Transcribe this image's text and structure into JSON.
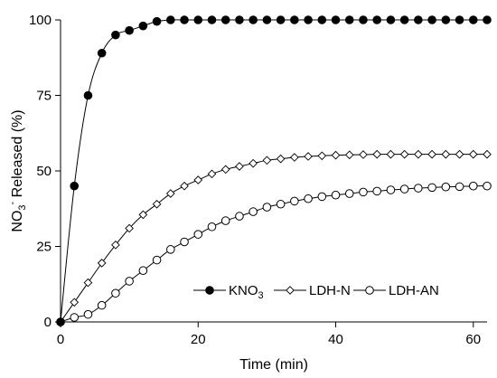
{
  "chart_data": {
    "type": "scatter",
    "xlabel": "Time (min)",
    "ylabel": {
      "pre": "NO",
      "sub": "3",
      "sup": "-",
      "post": " Released (%)"
    },
    "xlim": [
      0,
      62
    ],
    "ylim": [
      0,
      100
    ],
    "xticks": [
      0,
      20,
      40,
      60
    ],
    "yticks": [
      0,
      25,
      50,
      75,
      100
    ],
    "grid": false,
    "legend_position": "lower-right",
    "series": [
      {
        "name": "KNO3",
        "name_parts": {
          "pre": "KNO",
          "sub": "3"
        },
        "marker": "filled-circle",
        "x": [
          0,
          2,
          4,
          6,
          8,
          10,
          12,
          14,
          16,
          18,
          20,
          22,
          24,
          26,
          28,
          30,
          32,
          34,
          36,
          38,
          40,
          42,
          44,
          46,
          48,
          50,
          52,
          54,
          56,
          58,
          60,
          62
        ],
        "y": [
          0,
          45,
          75,
          89,
          95,
          96.5,
          98,
          99.5,
          100,
          100,
          100,
          100,
          100,
          100,
          100,
          100,
          100,
          100,
          100,
          100,
          100,
          100,
          100,
          100,
          100,
          100,
          100,
          100,
          100,
          100,
          100,
          100
        ]
      },
      {
        "name": "LDH-N",
        "name_parts": {
          "pre": "LDH-N",
          "sub": ""
        },
        "marker": "open-diamond",
        "x": [
          0,
          2,
          4,
          6,
          8,
          10,
          12,
          14,
          16,
          18,
          20,
          22,
          24,
          26,
          28,
          30,
          32,
          34,
          36,
          38,
          40,
          42,
          44,
          46,
          48,
          50,
          52,
          54,
          56,
          58,
          60,
          62
        ],
        "y": [
          0,
          6.5,
          13,
          19.5,
          25.5,
          31,
          35.5,
          39,
          42.5,
          45,
          47,
          49,
          50.5,
          51.5,
          52.5,
          53.5,
          54,
          54.5,
          54.8,
          55,
          55.2,
          55.3,
          55.4,
          55.5,
          55.5,
          55.5,
          55.5,
          55.5,
          55.5,
          55.5,
          55.5,
          55.5
        ]
      },
      {
        "name": "LDH-AN",
        "name_parts": {
          "pre": "LDH-AN",
          "sub": ""
        },
        "marker": "open-circle",
        "x": [
          0,
          2,
          4,
          6,
          8,
          10,
          12,
          14,
          16,
          18,
          20,
          22,
          24,
          26,
          28,
          30,
          32,
          34,
          36,
          38,
          40,
          42,
          44,
          46,
          48,
          50,
          52,
          54,
          56,
          58,
          60,
          62
        ],
        "y": [
          0,
          1.5,
          2.5,
          5.5,
          9.5,
          13.5,
          17,
          20.5,
          24,
          26.5,
          29,
          31.5,
          33.5,
          35,
          36.5,
          38,
          39,
          40,
          40.8,
          41.5,
          42,
          42.5,
          43,
          43.3,
          43.7,
          44,
          44.3,
          44.5,
          44.7,
          44.8,
          45,
          45
        ]
      }
    ]
  },
  "colors": {
    "marker_fill": "#000000",
    "marker_open": "#ffffff",
    "line": "#000000",
    "axis": "#000000"
  }
}
